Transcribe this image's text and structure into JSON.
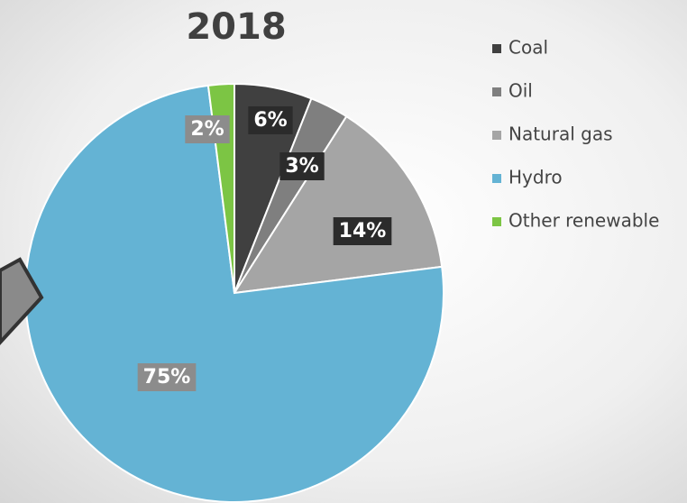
{
  "chart_data": {
    "type": "pie",
    "title": "2018",
    "categories": [
      "Coal",
      "Oil",
      "Natural gas",
      "Hydro",
      "Other renewable"
    ],
    "values": [
      6,
      3,
      14,
      75,
      2
    ],
    "value_labels": [
      "6%",
      "3%",
      "14%",
      "75%",
      "2%"
    ],
    "colors": [
      "#404040",
      "#7f7f7f",
      "#a5a5a5",
      "#64b3d4",
      "#7cc544"
    ],
    "legend": "right"
  }
}
